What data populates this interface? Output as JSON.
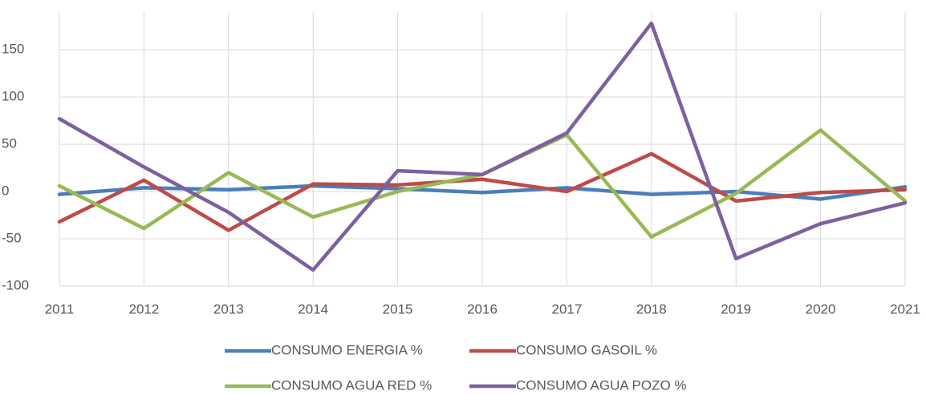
{
  "chart_data": {
    "type": "line",
    "categories": [
      "2011",
      "2012",
      "2013",
      "2014",
      "2015",
      "2016",
      "2017",
      "2018",
      "2019",
      "2020",
      "2021"
    ],
    "series": [
      {
        "name": "CONSUMO ENERGIA %",
        "color": "#4a7ebb",
        "values": [
          -3,
          4,
          2,
          6,
          3,
          -1,
          4,
          -3,
          0,
          -8,
          5
        ]
      },
      {
        "name": "CONSUMO GASOIL %",
        "color": "#be4b48",
        "values": [
          -32,
          12,
          -41,
          8,
          7,
          13,
          0,
          40,
          -10,
          -1,
          2
        ]
      },
      {
        "name": "CONSUMO AGUA RED %",
        "color": "#98b954",
        "values": [
          6,
          -39,
          20,
          -27,
          0,
          18,
          60,
          -48,
          -2,
          65,
          -10
        ]
      },
      {
        "name": "CONSUMO AGUA POZO %",
        "color": "#7d60a0",
        "values": [
          77,
          26,
          -22,
          -83,
          22,
          18,
          62,
          178,
          -71,
          -34,
          -12
        ]
      }
    ],
    "ylim": [
      -100,
      190
    ],
    "yticks": [
      -100,
      -50,
      0,
      50,
      100,
      150
    ],
    "grid": true
  }
}
